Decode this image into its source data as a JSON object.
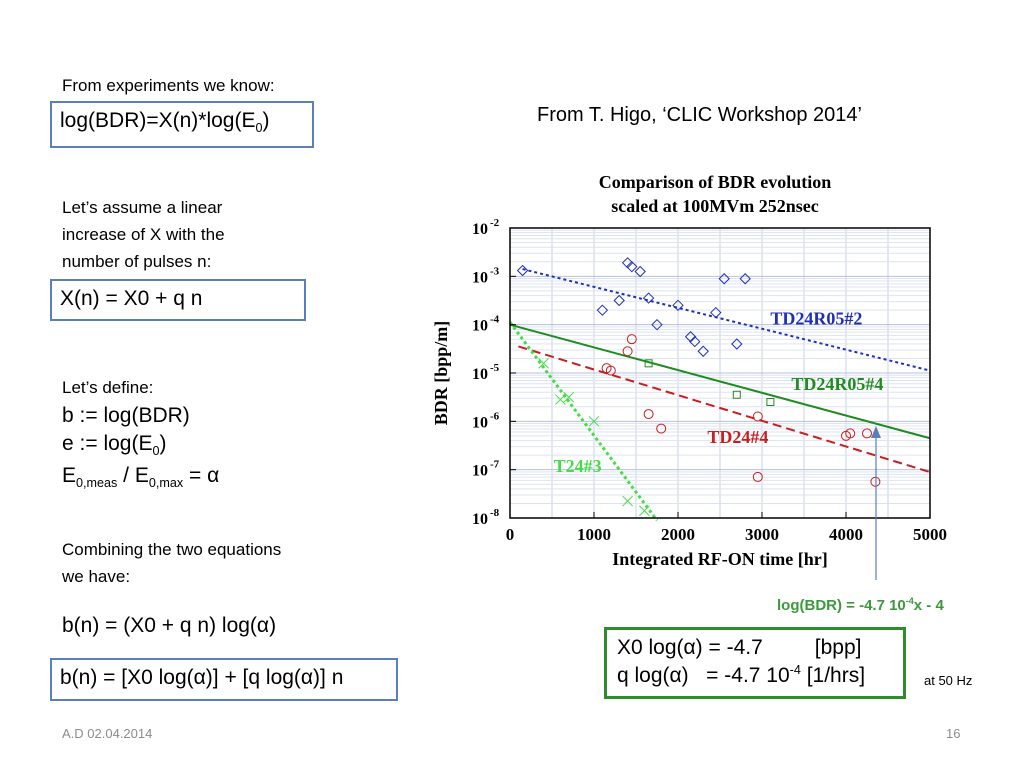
{
  "left": {
    "intro": "From experiments we know:",
    "eq1": {
      "main": "log(BDR)=X(n)*log(E",
      "sub": "0",
      "end": ")"
    },
    "assume": [
      "Let’s assume a linear",
      "increase of X with the",
      "number of pulses n:"
    ],
    "eq2": "X(n) = X0 + q n",
    "define_title": "Let’s define:",
    "define_b": "b := log(BDR)",
    "define_e": {
      "main": "e := log(E",
      "sub": "0",
      "end": ")"
    },
    "define_alpha": {
      "a": "E",
      "a_sub": "0,meas",
      "mid": " / E",
      "b_sub": "0,max",
      "end": " = α"
    },
    "combine": [
      "Combining the two equations",
      "we have:"
    ],
    "eq3": "b(n) = (X0 + q n) log(α)",
    "eq4": "b(n) = [X0 log(α)] + [q log(α)] n"
  },
  "right": {
    "source": "From T. Higo, ‘CLIC Workshop 2014’",
    "fit_label": {
      "pre": "log(BDR) = -4.7 10",
      "sup": "-4",
      "post": "x - 4"
    },
    "result_line1": {
      "a": "X0 log(α) = -4.7",
      "b": "[bpp]"
    },
    "result_line2": {
      "a": "q log(α)   = -4.7 10",
      "sup": "-4",
      "b": " [1/hrs]"
    },
    "note": "at 50 Hz"
  },
  "footer": {
    "left": "A.D 02.04.2014",
    "right": "16"
  },
  "colors": {
    "box_border": "#5b7fb9",
    "result_border": "#2e8b2e",
    "fit_label": "#3c9a3c"
  },
  "chart_data": {
    "type": "scatter",
    "title": [
      "Comparison of BDR evolution",
      "scaled at 100MVm 252nsec"
    ],
    "xlabel": "Integrated RF-ON time [hr]",
    "ylabel": "BDR [bpp/m]",
    "xlim": [
      0,
      5000
    ],
    "ylim": [
      1e-08,
      0.01
    ],
    "y_log": true,
    "grid": true,
    "x_ticks": [
      "0",
      "1000",
      "2000",
      "3000",
      "4000",
      "5000"
    ],
    "y_ticks": [
      {
        "base": "10",
        "exp": "-2",
        "v": -2
      },
      {
        "base": "10",
        "exp": "-3",
        "v": -3
      },
      {
        "base": "10",
        "exp": "-4",
        "v": -4
      },
      {
        "base": "10",
        "exp": "-5",
        "v": -5
      },
      {
        "base": "10",
        "exp": "-6",
        "v": -6
      },
      {
        "base": "10",
        "exp": "-7",
        "v": -7
      },
      {
        "base": "10",
        "exp": "-8",
        "v": -8
      }
    ],
    "series": [
      {
        "name": "TD24R05#2",
        "color": "#1f2fb8",
        "marker": "diamond",
        "label_x": 3100,
        "label_logy": -4.0,
        "fit": [
          [
            150,
            -2.85
          ],
          [
            5000,
            -4.95
          ]
        ],
        "points": [
          [
            150,
            -2.88
          ],
          [
            1400,
            -2.72
          ],
          [
            1450,
            -2.8
          ],
          [
            1550,
            -2.9
          ],
          [
            1100,
            -3.7
          ],
          [
            1300,
            -3.5
          ],
          [
            1650,
            -3.45
          ],
          [
            1750,
            -4.0
          ],
          [
            2000,
            -3.6
          ],
          [
            2150,
            -4.25
          ],
          [
            2200,
            -4.35
          ],
          [
            2300,
            -4.55
          ],
          [
            2450,
            -3.75
          ],
          [
            2550,
            -3.05
          ],
          [
            2700,
            -4.4
          ],
          [
            2800,
            -3.05
          ]
        ]
      },
      {
        "name": "TD24R05#4",
        "color": "#1e8c1e",
        "marker": "square",
        "label_x": 3350,
        "label_logy": -5.35,
        "fit": [
          [
            0,
            -4.0
          ],
          [
            5000,
            -6.35
          ]
        ],
        "points": [
          [
            1650,
            -4.8
          ],
          [
            2700,
            -5.45
          ],
          [
            3100,
            -5.6
          ]
        ]
      },
      {
        "name": "TD24#4",
        "color": "#c81e1e",
        "marker": "circle",
        "label_x": 2350,
        "label_logy": -6.45,
        "fit": [
          [
            100,
            -4.45
          ],
          [
            5000,
            -7.05
          ]
        ],
        "points": [
          [
            1150,
            -4.9
          ],
          [
            1200,
            -4.95
          ],
          [
            1400,
            -4.55
          ],
          [
            1450,
            -4.3
          ],
          [
            1650,
            -5.85
          ],
          [
            1800,
            -6.15
          ],
          [
            2950,
            -5.9
          ],
          [
            2950,
            -7.15
          ],
          [
            4000,
            -6.3
          ],
          [
            4050,
            -6.25
          ],
          [
            4250,
            -6.25
          ],
          [
            4350,
            -7.25
          ]
        ]
      },
      {
        "name": "T24#3",
        "color": "#44dd44",
        "marker": "x",
        "label_x": 520,
        "label_logy": -7.05,
        "fit": [
          [
            0,
            -3.95
          ],
          [
            1750,
            -8.05
          ]
        ],
        "points": [
          [
            400,
            -4.8
          ],
          [
            600,
            -5.55
          ],
          [
            700,
            -5.5
          ],
          [
            1000,
            -6.0
          ],
          [
            1400,
            -7.65
          ],
          [
            1600,
            -7.85
          ]
        ]
      }
    ]
  }
}
